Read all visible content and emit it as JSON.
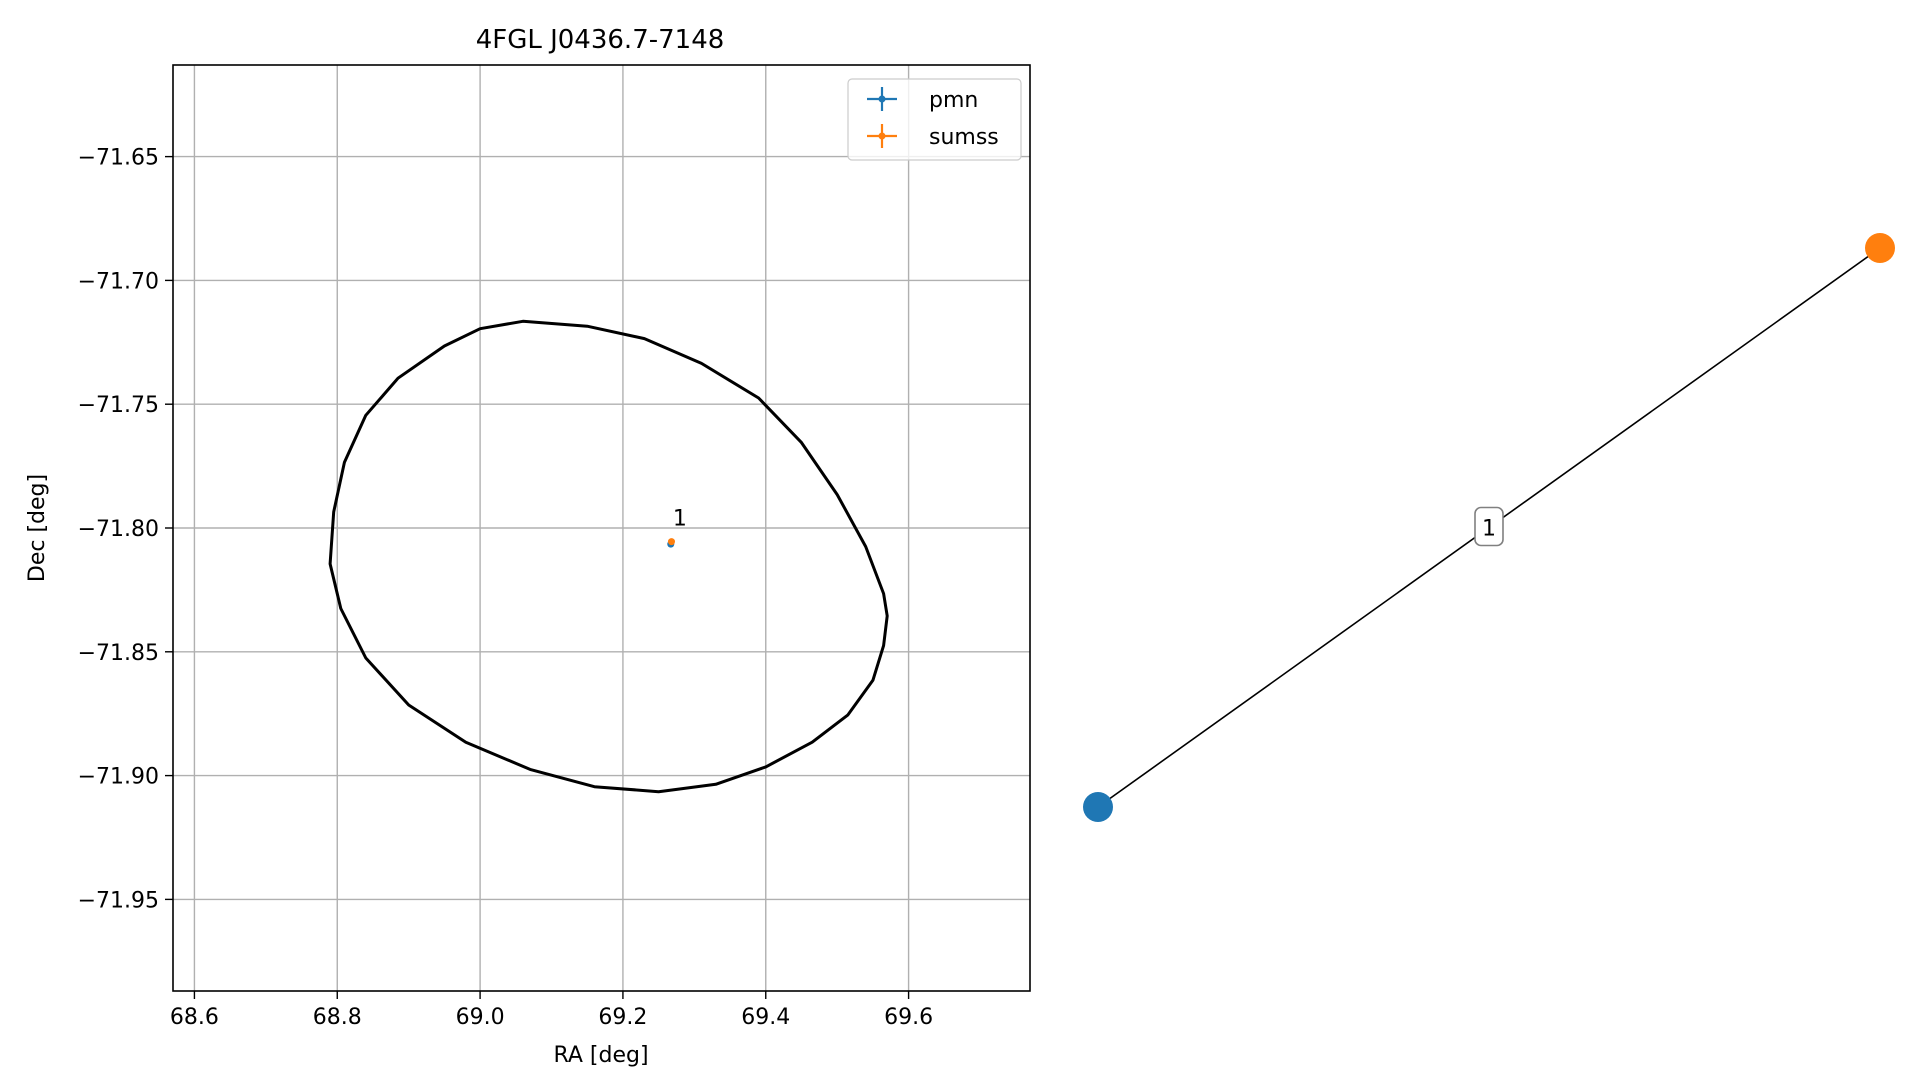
{
  "chart_data": [
    {
      "type": "scatter",
      "title": "4FGL J0436.7-7148",
      "xlabel": "RA [deg]",
      "ylabel": "Dec [deg]",
      "xlim": [
        68.57,
        69.77
      ],
      "ylim": [
        -71.987,
        -71.613
      ],
      "xticks": [
        68.6,
        68.8,
        69.0,
        69.2,
        69.4,
        69.6
      ],
      "xtick_labels": [
        "68.6",
        "68.8",
        "69.0",
        "69.2",
        "69.4",
        "69.6"
      ],
      "yticks": [
        -71.65,
        -71.7,
        -71.75,
        -71.8,
        -71.85,
        -71.9,
        -71.95
      ],
      "ytick_labels": [
        "−71.65",
        "−71.70",
        "−71.75",
        "−71.80",
        "−71.85",
        "−71.90",
        "−71.95"
      ],
      "grid": true,
      "legend_position": "top-right",
      "series": [
        {
          "name": "pmn",
          "color": "#1f77b4",
          "points": [
            {
              "x": 69.267,
              "y": -71.8065
            }
          ]
        },
        {
          "name": "sumss",
          "color": "#ff7f0e",
          "points": [
            {
              "x": 69.268,
              "y": -71.8055
            }
          ]
        }
      ],
      "annotations": [
        {
          "text": "1",
          "x": 69.27,
          "y": -71.799
        }
      ],
      "ellipse": {
        "color": "#000000",
        "points": [
          [
            69.06,
            -71.7165
          ],
          [
            69.15,
            -71.7185
          ],
          [
            69.23,
            -71.7235
          ],
          [
            69.31,
            -71.7335
          ],
          [
            69.39,
            -71.7475
          ],
          [
            69.45,
            -71.7655
          ],
          [
            69.5,
            -71.7865
          ],
          [
            69.54,
            -71.8075
          ],
          [
            69.565,
            -71.8265
          ],
          [
            69.57,
            -71.8355
          ],
          [
            69.565,
            -71.8475
          ],
          [
            69.55,
            -71.8615
          ],
          [
            69.515,
            -71.8755
          ],
          [
            69.465,
            -71.8865
          ],
          [
            69.4,
            -71.8965
          ],
          [
            69.33,
            -71.9035
          ],
          [
            69.25,
            -71.9065
          ],
          [
            69.16,
            -71.9045
          ],
          [
            69.07,
            -71.8975
          ],
          [
            68.98,
            -71.8865
          ],
          [
            68.9,
            -71.8715
          ],
          [
            68.84,
            -71.8525
          ],
          [
            68.805,
            -71.8325
          ],
          [
            68.79,
            -71.8145
          ],
          [
            68.795,
            -71.7935
          ],
          [
            68.81,
            -71.7735
          ],
          [
            68.84,
            -71.7545
          ],
          [
            68.885,
            -71.7395
          ],
          [
            68.95,
            -71.7265
          ],
          [
            69.0,
            -71.7195
          ]
        ]
      }
    },
    {
      "type": "network",
      "nodes": [
        {
          "id": "pmn",
          "color": "#1f77b4",
          "x": 0.0,
          "y": 0.0
        },
        {
          "id": "sumss",
          "color": "#ff7f0e",
          "x": 1.0,
          "y": 1.0
        }
      ],
      "edges": [
        {
          "source": "pmn",
          "target": "sumss",
          "label": "1"
        }
      ]
    }
  ]
}
